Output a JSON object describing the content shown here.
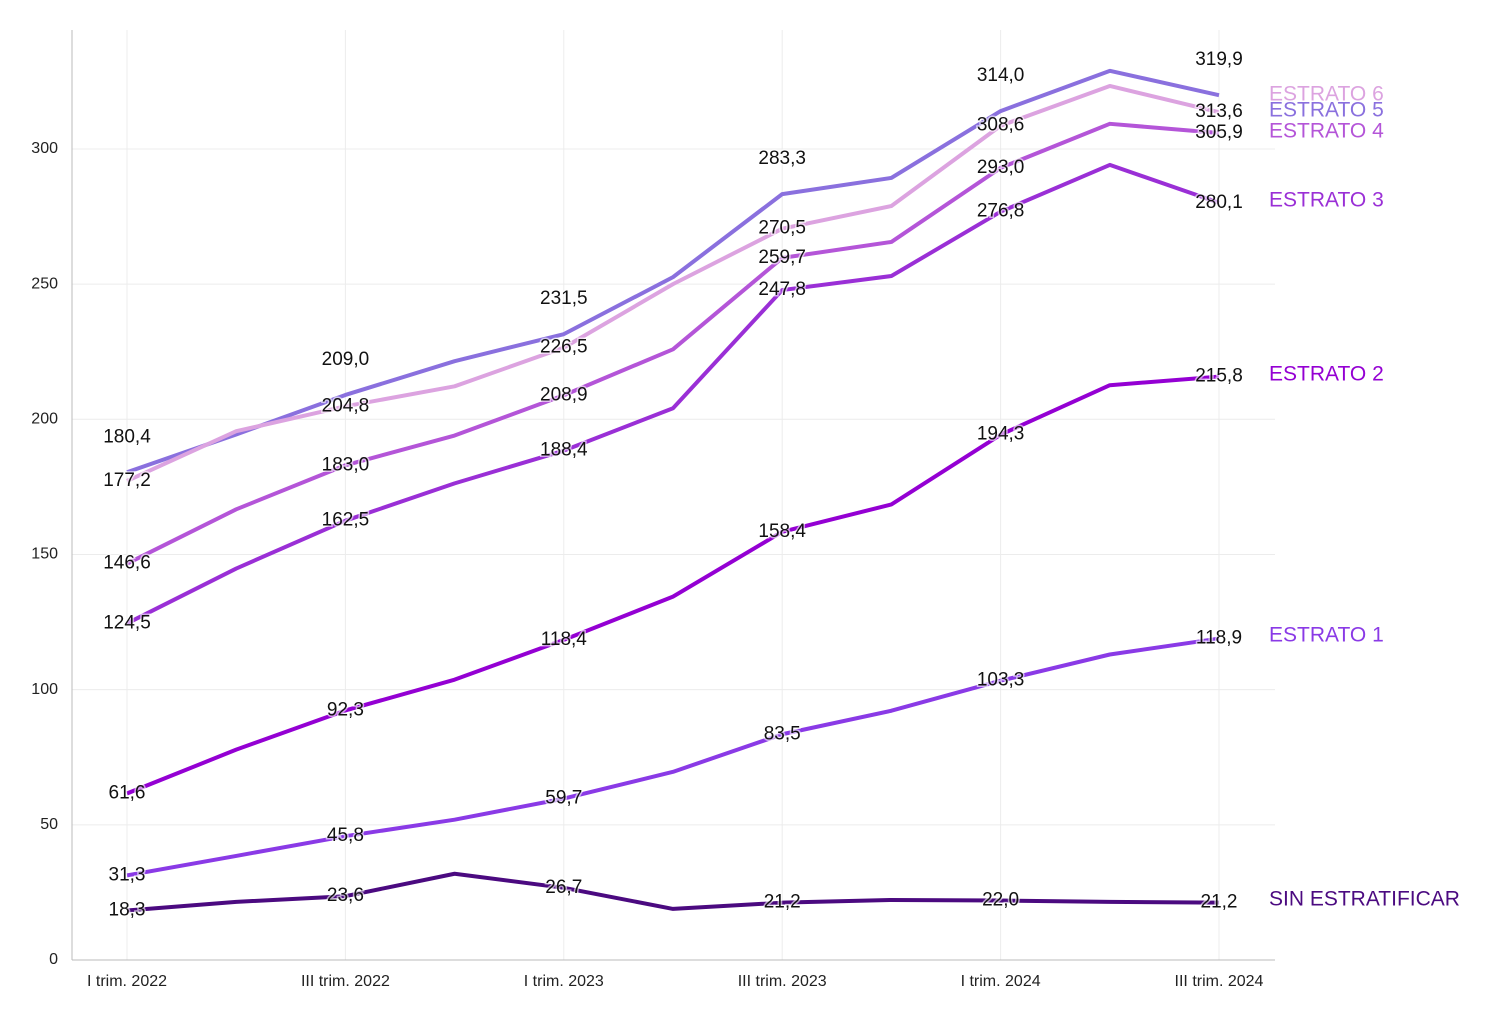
{
  "chart_data": {
    "type": "line",
    "categories": [
      "I trim. 2022",
      null,
      "III trim. 2022",
      null,
      "I trim. 2023",
      null,
      "III trim. 2023",
      null,
      "I trim. 2024",
      null,
      "III trim. 2024"
    ],
    "ylim": [
      0,
      344
    ],
    "yticks": [
      0,
      50,
      100,
      150,
      200,
      250,
      300
    ],
    "grid": true,
    "series": [
      {
        "name": "SIN ESTRATIFICAR",
        "color": "#4b0a80",
        "values": [
          18.3,
          21.5,
          23.6,
          31.9,
          26.7,
          18.9,
          21.2,
          22.2,
          22.0,
          21.5,
          21.2
        ],
        "value_labels": [
          "18,3",
          null,
          "23,6",
          null,
          "26,7",
          null,
          "21,2",
          null,
          "22,0",
          null,
          "21,2"
        ]
      },
      {
        "name": "ESTRATO 1",
        "color": "#8a3ae6",
        "values": [
          31.3,
          38.5,
          45.8,
          51.9,
          59.7,
          69.6,
          83.5,
          92.2,
          103.3,
          113.0,
          118.9
        ],
        "value_labels": [
          "31,3",
          null,
          "45,8",
          null,
          "59,7",
          null,
          "83,5",
          null,
          "103,3",
          null,
          "118,9"
        ]
      },
      {
        "name": "ESTRATO 2",
        "color": "#9400d3",
        "values": [
          61.6,
          77.8,
          92.3,
          103.7,
          118.4,
          134.4,
          158.4,
          168.5,
          194.3,
          212.6,
          215.8
        ],
        "value_labels": [
          "61,6",
          null,
          "92,3",
          null,
          "118,4",
          null,
          "158,4",
          null,
          "194,3",
          null,
          "215,8"
        ]
      },
      {
        "name": "ESTRATO 3",
        "color": "#9a2fd6",
        "values": [
          124.5,
          144.8,
          162.5,
          176.3,
          188.4,
          204.1,
          247.8,
          253.0,
          276.8,
          294.1,
          280.1
        ],
        "value_labels": [
          "124,5",
          null,
          "162,5",
          null,
          "188,4",
          null,
          "247,8",
          null,
          "276,8",
          null,
          "280,1"
        ]
      },
      {
        "name": "ESTRATO 4",
        "color": "#b455d8",
        "values": [
          146.6,
          166.7,
          183.0,
          194.0,
          208.9,
          225.9,
          259.7,
          265.6,
          293.0,
          309.3,
          305.9
        ],
        "value_labels": [
          "146,6",
          null,
          "183,0",
          null,
          "208,9",
          null,
          "259,7",
          null,
          "293,0",
          null,
          "305,9"
        ]
      },
      {
        "name": "ESTRATO 5",
        "color": "#8a70de",
        "values": [
          180.4,
          194.4,
          209.0,
          221.5,
          231.5,
          252.6,
          283.3,
          289.3,
          314.0,
          328.9,
          319.9
        ],
        "value_labels": [
          "180,4",
          null,
          "209,0",
          null,
          "231,5",
          null,
          "283,3",
          null,
          "314,0",
          null,
          "319,9"
        ]
      },
      {
        "name": "ESTRATO 6",
        "color": "#dca3e0",
        "values": [
          177.2,
          195.6,
          204.8,
          212.2,
          226.5,
          250.0,
          270.5,
          278.9,
          308.6,
          323.3,
          313.6
        ],
        "value_labels": [
          "177,2",
          null,
          "204,8",
          null,
          "226,5",
          null,
          "270,5",
          null,
          "308,6",
          null,
          "313,6"
        ]
      }
    ]
  }
}
